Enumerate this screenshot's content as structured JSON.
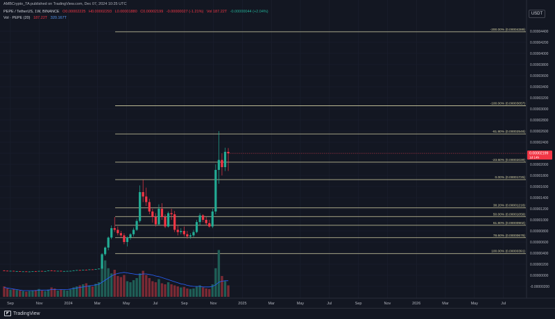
{
  "header": {
    "published": "AMBCrypto_TA published on TradingView.com, Dec 07, 2024 10:25 UTC",
    "symbol": "PEPE / TetherUS, 1W, BINANCE",
    "ohlc_o": "O0.00002225",
    "ohlc_h": "H0.00002293",
    "ohlc_l": "L0.00001880",
    "ohlc_c": "C0.00002199",
    "ohlc_chg": "-0.00000027 (-1.21%)",
    "ohlc_vol": "Vol 187.22T",
    "ohlc_extra": "-0.00000044 (+2.04%)",
    "vol_label": "Vol · PEPE (20)",
    "vol_val1": "187.22T",
    "vol_val2": "320.167T"
  },
  "toolbar": {
    "currency_label": "USDT"
  },
  "footer": {
    "brand": "TradingView"
  },
  "price_tag": {
    "price": "0.00002199",
    "countdown": "1d 14h"
  },
  "colors": {
    "up": "#22ab94",
    "down": "#f23645",
    "fib": "#d6d3a6",
    "volma": "#2962ff",
    "bg": "#131722"
  },
  "chart_data": {
    "type": "candlestick",
    "interval": "1W",
    "x_axis": {
      "tick_labels": [
        "Sep",
        "Nov",
        "2024",
        "Mar",
        "May",
        "Jul",
        "Sep",
        "Nov",
        "2025",
        "Mar",
        "May",
        "Jul",
        "Sep",
        "Nov",
        "2026",
        "Mar",
        "May",
        "Jul"
      ]
    },
    "y_axis": {
      "tick_labels": [
        "0.00004400",
        "0.00004200",
        "0.00004000",
        "0.00003800",
        "0.00003600",
        "0.00003400",
        "0.00003200",
        "0.00003000",
        "0.00002800",
        "0.00002600",
        "0.00002400",
        "0.00002200",
        "0.00002000",
        "0.00001800",
        "0.00001600",
        "0.00001400",
        "0.00001200",
        "0.00001000",
        "0.00000800",
        "0.00000600",
        "0.00000400",
        "0.00000200",
        "0.00000000",
        "-0.00000200"
      ]
    },
    "fib_levels": [
      {
        "label": "-200.00% (0.00004389)",
        "value": 4.389e-05
      },
      {
        "label": "-100.00% (0.00003057)",
        "value": 3.057e-05
      },
      {
        "label": "-61.80% (0.00002548)",
        "value": 2.548e-05
      },
      {
        "label": "-23.60% (0.00002039)",
        "value": 2.039e-05
      },
      {
        "label": "0.00% (0.00001725)",
        "value": 1.725e-05
      },
      {
        "label": "38.20% (0.00001216)",
        "value": 1.216e-05
      },
      {
        "label": "50.00% (0.00001059)",
        "value": 1.059e-05
      },
      {
        "label": "61.80% (0.00000902)",
        "value": 9.02e-06
      },
      {
        "label": "78.60% (0.00000678)",
        "value": 6.78e-06
      },
      {
        "label": "100.00% (0.00000391)",
        "value": 3.91e-06
      }
    ],
    "candles": [
      {
        "o": 8.6e-07,
        "h": 9.2e-07,
        "l": 8e-07,
        "c": 8.2e-07
      },
      {
        "o": 8.2e-07,
        "h": 8.6e-07,
        "l": 7.6e-07,
        "c": 7.8e-07
      },
      {
        "o": 7.8e-07,
        "h": 8.4e-07,
        "l": 7.4e-07,
        "c": 8e-07
      },
      {
        "o": 8e-07,
        "h": 8.2e-07,
        "l": 7e-07,
        "c": 7.2e-07
      },
      {
        "o": 7.2e-07,
        "h": 7.8e-07,
        "l": 6.8e-07,
        "c": 7.4e-07
      },
      {
        "o": 7.4e-07,
        "h": 7.6e-07,
        "l": 6.6e-07,
        "c": 6.8e-07
      },
      {
        "o": 6.8e-07,
        "h": 7.2e-07,
        "l": 6.4e-07,
        "c": 7e-07
      },
      {
        "o": 7e-07,
        "h": 7.4e-07,
        "l": 6.2e-07,
        "c": 6.4e-07
      },
      {
        "o": 6.4e-07,
        "h": 7e-07,
        "l": 6.2e-07,
        "c": 6.8e-07
      },
      {
        "o": 6.8e-07,
        "h": 7.4e-07,
        "l": 6.6e-07,
        "c": 7.2e-07
      },
      {
        "o": 7.2e-07,
        "h": 7.6e-07,
        "l": 6.8e-07,
        "c": 7e-07
      },
      {
        "o": 7e-07,
        "h": 8e-07,
        "l": 6.8e-07,
        "c": 7.8e-07
      },
      {
        "o": 7.8e-07,
        "h": 8.2e-07,
        "l": 7.2e-07,
        "c": 7.4e-07
      },
      {
        "o": 7.4e-07,
        "h": 7.8e-07,
        "l": 7e-07,
        "c": 7.6e-07
      },
      {
        "o": 7.6e-07,
        "h": 8.8e-07,
        "l": 7.4e-07,
        "c": 8.6e-07
      },
      {
        "o": 8.6e-07,
        "h": 9.2e-07,
        "l": 8e-07,
        "c": 8.2e-07
      },
      {
        "o": 8.2e-07,
        "h": 8.6e-07,
        "l": 7.6e-07,
        "c": 7.8e-07
      },
      {
        "o": 7.8e-07,
        "h": 8.2e-07,
        "l": 7.4e-07,
        "c": 8e-07
      },
      {
        "o": 8e-07,
        "h": 8.4e-07,
        "l": 7.2e-07,
        "c": 7.4e-07
      },
      {
        "o": 7.4e-07,
        "h": 7.8e-07,
        "l": 7e-07,
        "c": 7.6e-07
      },
      {
        "o": 7.6e-07,
        "h": 8e-07,
        "l": 7.2e-07,
        "c": 7.8e-07
      },
      {
        "o": 7.8e-07,
        "h": 8.2e-07,
        "l": 7.4e-07,
        "c": 8e-07
      },
      {
        "o": 8e-07,
        "h": 9e-07,
        "l": 7.8e-07,
        "c": 8.8e-07
      },
      {
        "o": 8.8e-07,
        "h": 9.6e-07,
        "l": 8.4e-07,
        "c": 9.4e-07
      },
      {
        "o": 9.4e-07,
        "h": 1e-06,
        "l": 9e-07,
        "c": 9.2e-07
      },
      {
        "o": 9.2e-07,
        "h": 1.02e-06,
        "l": 9e-07,
        "c": 1e-06
      },
      {
        "o": 1e-06,
        "h": 1.04e-06,
        "l": 9.4e-07,
        "c": 9.8e-07
      },
      {
        "o": 9.8e-07,
        "h": 1.08e-06,
        "l": 9.6e-07,
        "c": 1.06e-06
      },
      {
        "o": 1.06e-06,
        "h": 1.1e-06,
        "l": 1e-06,
        "c": 1.04e-06
      },
      {
        "o": 1.04e-06,
        "h": 1.14e-06,
        "l": 1.02e-06,
        "c": 1.12e-06
      },
      {
        "o": 1.12e-06,
        "h": 1.22e-06,
        "l": 1.08e-06,
        "c": 1.2e-06
      },
      {
        "o": 1.2e-06,
        "h": 4e-06,
        "l": 1.18e-06,
        "c": 3.8e-06
      },
      {
        "o": 3.8e-06,
        "h": 5.2e-06,
        "l": 3.5e-06,
        "c": 5e-06
      },
      {
        "o": 5e-06,
        "h": 7e-06,
        "l": 4.5e-06,
        "c": 6.8e-06
      },
      {
        "o": 6.8e-06,
        "h": 9e-06,
        "l": 6.5e-06,
        "c": 8.5e-06
      },
      {
        "o": 8.5e-06,
        "h": 1.05e-05,
        "l": 7.8e-06,
        "c": 8.2e-06
      },
      {
        "o": 8.2e-06,
        "h": 8.8e-06,
        "l": 7.2e-06,
        "c": 7.6e-06
      },
      {
        "o": 7.6e-06,
        "h": 8e-06,
        "l": 6.8e-06,
        "c": 7.2e-06
      },
      {
        "o": 7.2e-06,
        "h": 7.6e-06,
        "l": 5.6e-06,
        "c": 6e-06
      },
      {
        "o": 6e-06,
        "h": 7e-06,
        "l": 5.2e-06,
        "c": 6.8e-06
      },
      {
        "o": 6.8e-06,
        "h": 7.6e-06,
        "l": 6.4e-06,
        "c": 7.4e-06
      },
      {
        "o": 7.4e-06,
        "h": 8.6e-06,
        "l": 7e-06,
        "c": 8.2e-06
      },
      {
        "o": 8.2e-06,
        "h": 1.02e-05,
        "l": 8e-06,
        "c": 9.8e-06
      },
      {
        "o": 9.8e-06,
        "h": 1.62e-05,
        "l": 9.5e-06,
        "c": 1.5e-05
      },
      {
        "o": 1.5e-05,
        "h": 1.72e-05,
        "l": 1.32e-05,
        "c": 1.42e-05
      },
      {
        "o": 1.42e-05,
        "h": 1.58e-05,
        "l": 1.25e-05,
        "c": 1.32e-05
      },
      {
        "o": 1.32e-05,
        "h": 1.38e-05,
        "l": 1.1e-05,
        "c": 1.15e-05
      },
      {
        "o": 1.15e-05,
        "h": 1.2e-05,
        "l": 9.5e-06,
        "c": 1.05e-05
      },
      {
        "o": 1.05e-05,
        "h": 1.12e-05,
        "l": 8.8e-06,
        "c": 9.2e-06
      },
      {
        "o": 9.2e-06,
        "h": 1.28e-05,
        "l": 9e-06,
        "c": 1.2e-05
      },
      {
        "o": 1.2e-05,
        "h": 1.3e-05,
        "l": 1e-05,
        "c": 1.05e-05
      },
      {
        "o": 1.05e-05,
        "h": 1.1e-05,
        "l": 8.5e-06,
        "c": 8.8e-06
      },
      {
        "o": 8.8e-06,
        "h": 1.15e-05,
        "l": 8.6e-06,
        "c": 1.12e-05
      },
      {
        "o": 1.12e-05,
        "h": 1.2e-05,
        "l": 1e-05,
        "c": 1.1e-05
      },
      {
        "o": 1.1e-05,
        "h": 1.16e-05,
        "l": 7.8e-06,
        "c": 8.2e-06
      },
      {
        "o": 8.2e-06,
        "h": 9e-06,
        "l": 7.2e-06,
        "c": 7.8e-06
      },
      {
        "o": 7.8e-06,
        "h": 8.5e-06,
        "l": 7.4e-06,
        "c": 8e-06
      },
      {
        "o": 8e-06,
        "h": 8.8e-06,
        "l": 7e-06,
        "c": 7.4e-06
      },
      {
        "o": 7.4e-06,
        "h": 8e-06,
        "l": 6.6e-06,
        "c": 7e-06
      },
      {
        "o": 7e-06,
        "h": 7.6e-06,
        "l": 6.6e-06,
        "c": 7.2e-06
      },
      {
        "o": 7.2e-06,
        "h": 8.2e-06,
        "l": 6.9e-06,
        "c": 7.8e-06
      },
      {
        "o": 7.8e-06,
        "h": 1e-05,
        "l": 7.6e-06,
        "c": 9.6e-06
      },
      {
        "o": 9.6e-06,
        "h": 1.12e-05,
        "l": 9e-06,
        "c": 1.08e-05
      },
      {
        "o": 1.08e-05,
        "h": 1.1e-05,
        "l": 9.6e-06,
        "c": 1e-05
      },
      {
        "o": 1e-05,
        "h": 1.05e-05,
        "l": 9e-06,
        "c": 9.4e-06
      },
      {
        "o": 9.4e-06,
        "h": 1e-05,
        "l": 8.6e-06,
        "c": 8.8e-06
      },
      {
        "o": 8.8e-06,
        "h": 1.2e-05,
        "l": 8.5e-06,
        "c": 1.15e-05
      },
      {
        "o": 1.15e-05,
        "h": 2e-05,
        "l": 1.1e-05,
        "c": 1.9e-05
      },
      {
        "o": 1.9e-05,
        "h": 2.6e-05,
        "l": 1.65e-05,
        "c": 2.08e-05
      },
      {
        "o": 2.08e-05,
        "h": 2.2e-05,
        "l": 1.8e-05,
        "c": 1.95e-05
      },
      {
        "o": 1.95e-05,
        "h": 2.3e-05,
        "l": 1.88e-05,
        "c": 2.226e-05
      },
      {
        "o": 2.225e-05,
        "h": 2.293e-05,
        "l": 1.88e-05,
        "c": 2.199e-05
      }
    ],
    "volume": [
      20,
      16,
      14,
      15,
      13,
      12,
      11,
      10,
      11,
      12,
      13,
      15,
      12,
      11,
      14,
      18,
      16,
      12,
      14,
      13,
      12,
      14,
      18,
      20,
      22,
      24,
      26,
      22,
      20,
      25,
      28,
      60,
      70,
      55,
      45,
      52,
      40,
      38,
      42,
      30,
      28,
      32,
      36,
      45,
      50,
      42,
      36,
      30,
      28,
      34,
      26,
      24,
      28,
      24,
      22,
      20,
      18,
      19,
      16,
      15,
      16,
      20,
      22,
      18,
      16,
      15,
      24,
      55,
      90,
      40,
      30,
      22
    ],
    "volume_ma": [
      18,
      17,
      16,
      15,
      14,
      13,
      12,
      12,
      12,
      12,
      12,
      13,
      13,
      13,
      13,
      14,
      14,
      14,
      14,
      14,
      14,
      15,
      16,
      17,
      18,
      19,
      20,
      21,
      22,
      23,
      24,
      28,
      32,
      36,
      40,
      43,
      45,
      46,
      47,
      46,
      45,
      44,
      43,
      43,
      44,
      44,
      43,
      42,
      40,
      39,
      37,
      35,
      33,
      31,
      29,
      27,
      25,
      24,
      22,
      21,
      20,
      20,
      20,
      19,
      19,
      19,
      20,
      23,
      28,
      30,
      31,
      31
    ]
  }
}
